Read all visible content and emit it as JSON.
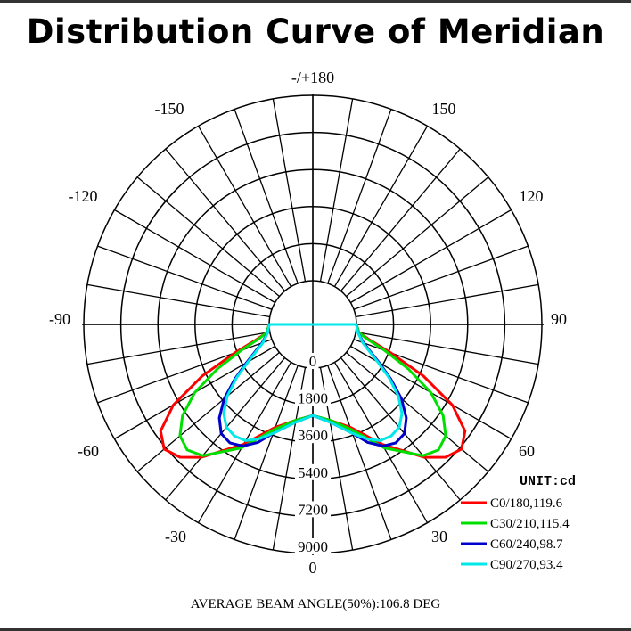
{
  "title": "Distribution Curve of Meridian",
  "footer": "AVERAGE BEAM ANGLE(50%):106.8 DEG",
  "chart_data": {
    "type": "polar",
    "title": "Distribution Curve of Meridian",
    "unit_label": "UNIT:cd",
    "radial_ticks": [
      "0",
      "1800",
      "3600",
      "5400",
      "7200",
      "9000"
    ],
    "radial_max": 9000,
    "angle_ticks": [
      {
        "text": "-/+180",
        "deg": 180
      },
      {
        "text": "150",
        "deg": 150
      },
      {
        "text": "-150",
        "deg": -150
      },
      {
        "text": "120",
        "deg": 120
      },
      {
        "text": "-120",
        "deg": -120
      },
      {
        "text": "90",
        "deg": 90
      },
      {
        "text": "-90",
        "deg": -90
      },
      {
        "text": "60",
        "deg": 60
      },
      {
        "text": "-60",
        "deg": -60
      },
      {
        "text": "30",
        "deg": 30
      },
      {
        "text": "-30",
        "deg": -30
      },
      {
        "text": "0",
        "deg": 0
      }
    ],
    "series": [
      {
        "name": "C0/180,119.6",
        "color": "#ff0000",
        "points": [
          [
            0,
            2300
          ],
          [
            10,
            2600
          ],
          [
            20,
            3200
          ],
          [
            30,
            4600
          ],
          [
            40,
            6300
          ],
          [
            45,
            7000
          ],
          [
            50,
            7300
          ],
          [
            55,
            6900
          ],
          [
            60,
            5700
          ],
          [
            65,
            3800
          ],
          [
            70,
            1900
          ],
          [
            75,
            700
          ],
          [
            80,
            150
          ],
          [
            90,
            0
          ]
        ]
      },
      {
        "name": "C30/210,115.4",
        "color": "#00e000",
        "points": [
          [
            0,
            2300
          ],
          [
            10,
            2600
          ],
          [
            20,
            3300
          ],
          [
            30,
            4800
          ],
          [
            40,
            6200
          ],
          [
            45,
            6500
          ],
          [
            50,
            6300
          ],
          [
            55,
            5600
          ],
          [
            60,
            4500
          ],
          [
            65,
            3000
          ],
          [
            70,
            1600
          ],
          [
            75,
            600
          ],
          [
            80,
            150
          ],
          [
            90,
            0
          ]
        ]
      },
      {
        "name": "C60/240,98.7",
        "color": "#0000cc",
        "points": [
          [
            0,
            2300
          ],
          [
            10,
            2700
          ],
          [
            20,
            3500
          ],
          [
            25,
            4200
          ],
          [
            30,
            4700
          ],
          [
            35,
            4900
          ],
          [
            40,
            4800
          ],
          [
            45,
            4300
          ],
          [
            50,
            3500
          ],
          [
            55,
            2500
          ],
          [
            60,
            1600
          ],
          [
            70,
            500
          ],
          [
            80,
            100
          ],
          [
            90,
            0
          ]
        ]
      },
      {
        "name": "C90/270,93.4",
        "color": "#00e8e8",
        "points": [
          [
            0,
            2300
          ],
          [
            10,
            2700
          ],
          [
            20,
            3500
          ],
          [
            25,
            4000
          ],
          [
            30,
            4400
          ],
          [
            35,
            4500
          ],
          [
            40,
            4400
          ],
          [
            45,
            4000
          ],
          [
            50,
            3300
          ],
          [
            55,
            2400
          ],
          [
            60,
            1500
          ],
          [
            70,
            450
          ],
          [
            80,
            100
          ],
          [
            90,
            0
          ]
        ]
      }
    ]
  }
}
